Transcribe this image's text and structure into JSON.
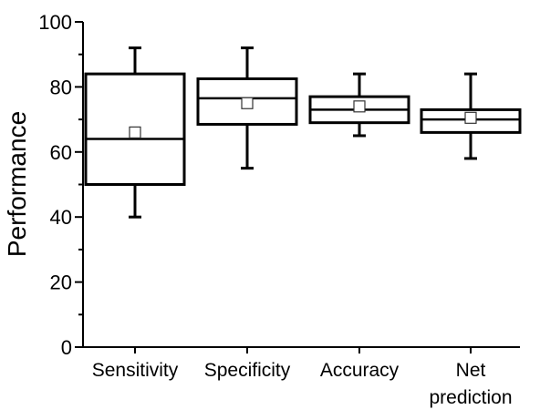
{
  "chart_data": {
    "type": "box",
    "title": "",
    "xlabel": "",
    "ylabel": "Performance",
    "ylim": [
      0,
      100
    ],
    "y_ticks": [
      0,
      20,
      40,
      60,
      80,
      100
    ],
    "grid": false,
    "legend": "none",
    "categories": [
      [
        "Sensitivity"
      ],
      [
        "Specificity"
      ],
      [
        "Accuracy"
      ],
      [
        "Net",
        "prediction"
      ]
    ],
    "boxes": [
      {
        "min": 40,
        "q1": 50,
        "median": 64,
        "q3": 84,
        "max": 92,
        "mean": 66
      },
      {
        "min": 55,
        "q1": 68.5,
        "median": 76.5,
        "q3": 82.5,
        "max": 92,
        "mean": 75
      },
      {
        "min": 65,
        "q1": 69,
        "median": 73,
        "q3": 77,
        "max": 84,
        "mean": 74
      },
      {
        "min": 58,
        "q1": 66,
        "median": 70,
        "q3": 73,
        "max": 84,
        "mean": 70.5
      }
    ],
    "colors": {
      "stroke": "#000000",
      "mean_marker_stroke": "#333333",
      "background": "#ffffff"
    }
  }
}
